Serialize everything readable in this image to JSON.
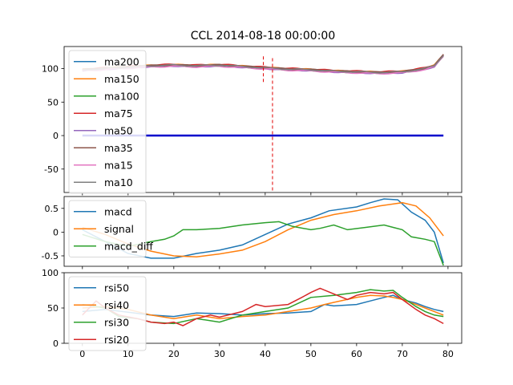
{
  "title": "CCL 2014-08-18 00:00:00",
  "colors": {
    "c0": "#1f77b4",
    "c1": "#ff7f0e",
    "c2": "#2ca02c",
    "c3": "#d62728",
    "c4": "#9467bd",
    "c5": "#8c564b",
    "c6": "#e377c2",
    "c7": "#7f7f7f",
    "zero_line": "#0000cc",
    "marker": "#e00000"
  },
  "x_ticks": [
    0,
    10,
    20,
    30,
    40,
    50,
    60,
    70,
    80
  ],
  "chart_data": [
    {
      "type": "line",
      "xlim": [
        -4,
        83
      ],
      "ylim": [
        -85,
        133
      ],
      "y_ticks": [
        -50,
        0,
        50,
        100
      ],
      "legend_position": "upper-left",
      "series": [
        {
          "name": "ma200",
          "color": "c0"
        },
        {
          "name": "ma150",
          "color": "c1"
        },
        {
          "name": "ma100",
          "color": "c2"
        },
        {
          "name": "ma75",
          "color": "c3"
        },
        {
          "name": "ma50",
          "color": "c4"
        },
        {
          "name": "ma35",
          "color": "c5"
        },
        {
          "name": "ma15",
          "color": "c6"
        },
        {
          "name": "ma10",
          "color": "c7"
        }
      ],
      "price_profile": [
        [
          0,
          98
        ],
        [
          5,
          100
        ],
        [
          10,
          102
        ],
        [
          15,
          104
        ],
        [
          20,
          105
        ],
        [
          25,
          104
        ],
        [
          30,
          105
        ],
        [
          35,
          103
        ],
        [
          40,
          101
        ],
        [
          45,
          99
        ],
        [
          50,
          98
        ],
        [
          55,
          96
        ],
        [
          60,
          95
        ],
        [
          65,
          94
        ],
        [
          70,
          95
        ],
        [
          75,
          100
        ],
        [
          77,
          104
        ],
        [
          79,
          120
        ]
      ],
      "zero_line": {
        "x": [
          0,
          79
        ],
        "y": 0
      },
      "markers": [
        {
          "x": 39.6,
          "y": [
            80,
            120
          ]
        },
        {
          "x": 41.6,
          "y": [
            -82,
            117
          ]
        }
      ]
    },
    {
      "type": "line",
      "xlim": [
        -4,
        83
      ],
      "ylim": [
        -0.72,
        0.75
      ],
      "y_ticks": [
        -0.5,
        0.0,
        0.5
      ],
      "legend_position": "upper-left",
      "series": [
        {
          "name": "macd",
          "color": "c0",
          "points": [
            [
              0,
              0.05
            ],
            [
              5,
              -0.2
            ],
            [
              10,
              -0.45
            ],
            [
              15,
              -0.55
            ],
            [
              20,
              -0.55
            ],
            [
              25,
              -0.45
            ],
            [
              30,
              -0.38
            ],
            [
              35,
              -0.27
            ],
            [
              40,
              -0.05
            ],
            [
              45,
              0.17
            ],
            [
              50,
              0.3
            ],
            [
              54,
              0.45
            ],
            [
              60,
              0.53
            ],
            [
              63,
              0.62
            ],
            [
              66,
              0.7
            ],
            [
              69,
              0.68
            ],
            [
              72,
              0.42
            ],
            [
              75,
              0.25
            ],
            [
              77,
              0.0
            ],
            [
              79,
              -0.65
            ]
          ]
        },
        {
          "name": "signal",
          "color": "c1",
          "points": [
            [
              0,
              0.1
            ],
            [
              5,
              -0.05
            ],
            [
              10,
              -0.25
            ],
            [
              15,
              -0.4
            ],
            [
              20,
              -0.5
            ],
            [
              25,
              -0.52
            ],
            [
              30,
              -0.46
            ],
            [
              35,
              -0.38
            ],
            [
              40,
              -0.2
            ],
            [
              45,
              0.05
            ],
            [
              50,
              0.25
            ],
            [
              55,
              0.37
            ],
            [
              60,
              0.45
            ],
            [
              65,
              0.55
            ],
            [
              70,
              0.62
            ],
            [
              73,
              0.55
            ],
            [
              76,
              0.3
            ],
            [
              79,
              -0.08
            ]
          ]
        },
        {
          "name": "macd_diff",
          "color": "c2",
          "points": [
            [
              0,
              -0.05
            ],
            [
              5,
              -0.2
            ],
            [
              10,
              -0.3
            ],
            [
              15,
              -0.2
            ],
            [
              18,
              -0.15
            ],
            [
              20,
              -0.08
            ],
            [
              22,
              0.05
            ],
            [
              25,
              0.05
            ],
            [
              30,
              0.08
            ],
            [
              35,
              0.15
            ],
            [
              40,
              0.2
            ],
            [
              43,
              0.22
            ],
            [
              46,
              0.12
            ],
            [
              50,
              0.05
            ],
            [
              52,
              0.08
            ],
            [
              55,
              0.15
            ],
            [
              58,
              0.05
            ],
            [
              62,
              0.1
            ],
            [
              66,
              0.15
            ],
            [
              68,
              0.1
            ],
            [
              70,
              0.05
            ],
            [
              72,
              -0.1
            ],
            [
              75,
              -0.15
            ],
            [
              77,
              -0.2
            ],
            [
              79,
              -0.7
            ]
          ]
        }
      ]
    },
    {
      "type": "line",
      "xlim": [
        -4,
        83
      ],
      "ylim": [
        0,
        100
      ],
      "y_ticks": [
        0,
        50,
        100
      ],
      "legend_position": "upper-left",
      "series": [
        {
          "name": "rsi50",
          "color": "c0",
          "points": [
            [
              0,
              45
            ],
            [
              5,
              48
            ],
            [
              10,
              44
            ],
            [
              15,
              40
            ],
            [
              20,
              38
            ],
            [
              25,
              43
            ],
            [
              30,
              42
            ],
            [
              35,
              40
            ],
            [
              40,
              42
            ],
            [
              45,
              43
            ],
            [
              50,
              45
            ],
            [
              53,
              55
            ],
            [
              55,
              53
            ],
            [
              60,
              55
            ],
            [
              63,
              60
            ],
            [
              66,
              65
            ],
            [
              68,
              68
            ],
            [
              70,
              62
            ],
            [
              73,
              57
            ],
            [
              75,
              52
            ],
            [
              77,
              48
            ],
            [
              79,
              45
            ]
          ]
        },
        {
          "name": "rsi40",
          "color": "c1",
          "points": [
            [
              0,
              50
            ],
            [
              5,
              52
            ],
            [
              10,
              48
            ],
            [
              15,
              40
            ],
            [
              20,
              35
            ],
            [
              25,
              40
            ],
            [
              30,
              35
            ],
            [
              35,
              38
            ],
            [
              40,
              40
            ],
            [
              45,
              45
            ],
            [
              50,
              50
            ],
            [
              53,
              55
            ],
            [
              55,
              58
            ],
            [
              60,
              65
            ],
            [
              63,
              68
            ],
            [
              66,
              67
            ],
            [
              68,
              65
            ],
            [
              70,
              62
            ],
            [
              73,
              55
            ],
            [
              75,
              50
            ],
            [
              77,
              45
            ],
            [
              79,
              40
            ]
          ]
        },
        {
          "name": "rsi30",
          "color": "c2",
          "points": [
            [
              0,
              55
            ],
            [
              5,
              50
            ],
            [
              8,
              38
            ],
            [
              12,
              35
            ],
            [
              15,
              30
            ],
            [
              20,
              28
            ],
            [
              25,
              35
            ],
            [
              30,
              30
            ],
            [
              35,
              40
            ],
            [
              40,
              45
            ],
            [
              45,
              50
            ],
            [
              50,
              65
            ],
            [
              55,
              68
            ],
            [
              60,
              72
            ],
            [
              63,
              76
            ],
            [
              66,
              74
            ],
            [
              68,
              75
            ],
            [
              70,
              65
            ],
            [
              73,
              52
            ],
            [
              75,
              45
            ],
            [
              77,
              40
            ],
            [
              79,
              38
            ]
          ]
        },
        {
          "name": "rsi20",
          "color": "c3",
          "points": [
            [
              0,
              40
            ],
            [
              3,
              60
            ],
            [
              5,
              50
            ],
            [
              8,
              40
            ],
            [
              12,
              35
            ],
            [
              15,
              30
            ],
            [
              18,
              28
            ],
            [
              20,
              30
            ],
            [
              22,
              25
            ],
            [
              25,
              35
            ],
            [
              28,
              40
            ],
            [
              30,
              37
            ],
            [
              35,
              45
            ],
            [
              38,
              55
            ],
            [
              40,
              52
            ],
            [
              45,
              55
            ],
            [
              48,
              65
            ],
            [
              50,
              72
            ],
            [
              52,
              78
            ],
            [
              55,
              70
            ],
            [
              58,
              62
            ],
            [
              60,
              68
            ],
            [
              63,
              72
            ],
            [
              66,
              70
            ],
            [
              68,
              72
            ],
            [
              70,
              62
            ],
            [
              73,
              48
            ],
            [
              75,
              40
            ],
            [
              77,
              35
            ],
            [
              79,
              28
            ]
          ]
        }
      ]
    }
  ]
}
